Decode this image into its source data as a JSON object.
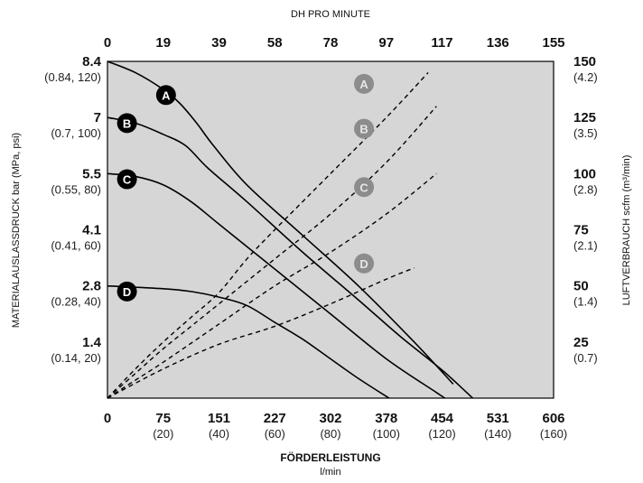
{
  "chart_data": {
    "type": "line",
    "title": "",
    "top_axis": {
      "label": "DH PRO MINUTE",
      "ticks": [
        "0",
        "19",
        "39",
        "58",
        "78",
        "97",
        "117",
        "136",
        "155"
      ],
      "range": [
        0,
        155
      ]
    },
    "bottom_axis": {
      "label": "FÖRDERLEISTUNG",
      "unit": "l/min",
      "ticks": [
        {
          "main": "0",
          "sub": ""
        },
        {
          "main": "75",
          "sub": "(20)"
        },
        {
          "main": "151",
          "sub": "(40)"
        },
        {
          "main": "227",
          "sub": "(60)"
        },
        {
          "main": "302",
          "sub": "(80)"
        },
        {
          "main": "378",
          "sub": "(100)"
        },
        {
          "main": "454",
          "sub": "(120)"
        },
        {
          "main": "531",
          "sub": "(140)"
        },
        {
          "main": "606",
          "sub": "(160)"
        }
      ],
      "range": [
        0,
        160
      ],
      "range_unit": "gpm"
    },
    "left_axis": {
      "label": "MATERIALAUSLASSDRUCK bar (MPa, psi)",
      "ticks": [
        {
          "main": "8.4",
          "sub": "(0.84, 120)"
        },
        {
          "main": "7",
          "sub": "(0.7, 100)"
        },
        {
          "main": "5.5",
          "sub": "(0.55, 80)"
        },
        {
          "main": "4.1",
          "sub": "(0.41, 60)"
        },
        {
          "main": "2.8",
          "sub": "(0.28, 40)"
        },
        {
          "main": "1.4",
          "sub": "(0.14, 20)"
        }
      ],
      "range": [
        0,
        120
      ],
      "range_unit": "psi"
    },
    "right_axis": {
      "label": "LUFTVERBRAUCH scfm (m³/min)",
      "ticks": [
        {
          "main": "150",
          "sub": "(4.2)"
        },
        {
          "main": "125",
          "sub": "(3.5)"
        },
        {
          "main": "100",
          "sub": "(2.8)"
        },
        {
          "main": "75",
          "sub": "(2.1)"
        },
        {
          "main": "50",
          "sub": "(1.4)"
        },
        {
          "main": "25",
          "sub": "(0.7)"
        }
      ],
      "range": [
        0,
        150
      ]
    },
    "series": [
      {
        "name": "A",
        "kind": "pressure",
        "axis": "left",
        "style": "solid",
        "x": [
          0,
          10,
          20,
          26,
          32,
          38,
          50,
          70,
          90,
          110,
          124
        ],
        "y": [
          120,
          116,
          110,
          105,
          98,
          90,
          76,
          58,
          40,
          20,
          5
        ]
      },
      {
        "name": "B",
        "kind": "pressure",
        "axis": "left",
        "style": "solid",
        "x": [
          0,
          10,
          20,
          28,
          36,
          50,
          70,
          90,
          105,
          120,
          131
        ],
        "y": [
          100,
          98,
          94,
          90,
          82,
          70,
          52,
          35,
          22,
          10,
          0
        ]
      },
      {
        "name": "C",
        "kind": "pressure",
        "axis": "left",
        "style": "solid",
        "x": [
          0,
          10,
          20,
          30,
          40,
          60,
          80,
          100,
          118,
          121
        ],
        "y": [
          80,
          79,
          76,
          70,
          62,
          46,
          30,
          14,
          2,
          0
        ]
      },
      {
        "name": "D",
        "kind": "pressure",
        "axis": "left",
        "style": "solid",
        "x": [
          0,
          20,
          30,
          40,
          50,
          60,
          70,
          80,
          90,
          101
        ],
        "y": [
          40,
          39,
          38,
          36,
          33,
          27,
          21,
          14,
          7,
          0
        ]
      },
      {
        "name": "A",
        "kind": "air",
        "axis": "right",
        "style": "dashed",
        "x": [
          0,
          10,
          20,
          30,
          40,
          50,
          60,
          80,
          100,
          115
        ],
        "y": [
          0,
          13,
          25,
          36,
          47,
          62,
          75,
          100,
          125,
          145
        ]
      },
      {
        "name": "B",
        "kind": "air",
        "axis": "right",
        "style": "dashed",
        "x": [
          0,
          10,
          20,
          30,
          40,
          60,
          80,
          100,
          118
        ],
        "y": [
          0,
          11,
          22,
          32,
          42,
          62,
          82,
          105,
          130
        ]
      },
      {
        "name": "C",
        "kind": "air",
        "axis": "right",
        "style": "dashed",
        "x": [
          0,
          10,
          20,
          40,
          60,
          80,
          100,
          118
        ],
        "y": [
          0,
          8,
          16,
          33,
          50,
          65,
          82,
          100
        ]
      },
      {
        "name": "D",
        "kind": "air",
        "axis": "right",
        "style": "dashed",
        "x": [
          0,
          20,
          40,
          60,
          80,
          100,
          110
        ],
        "y": [
          0,
          13,
          24,
          32,
          42,
          53,
          58
        ]
      }
    ],
    "markers": [
      {
        "label": "A",
        "style": "black",
        "x": 21,
        "y": 108,
        "axis": "left"
      },
      {
        "label": "B",
        "style": "black",
        "x": 7,
        "y": 98,
        "axis": "left"
      },
      {
        "label": "C",
        "style": "black",
        "x": 7,
        "y": 78,
        "axis": "left"
      },
      {
        "label": "D",
        "style": "black",
        "x": 7,
        "y": 38,
        "axis": "left"
      },
      {
        "label": "A",
        "style": "gray",
        "x": 92,
        "y": 140,
        "axis": "right"
      },
      {
        "label": "B",
        "style": "gray",
        "x": 92,
        "y": 120,
        "axis": "right"
      },
      {
        "label": "C",
        "style": "gray",
        "x": 92,
        "y": 94,
        "axis": "right"
      },
      {
        "label": "D",
        "style": "gray",
        "x": 92,
        "y": 60,
        "axis": "right"
      }
    ],
    "grid": false,
    "colors": {
      "plot_background": "#d6d6d6",
      "curve": "#000000",
      "marker_black": "#000000",
      "marker_gray": "#8c8c8c"
    }
  }
}
